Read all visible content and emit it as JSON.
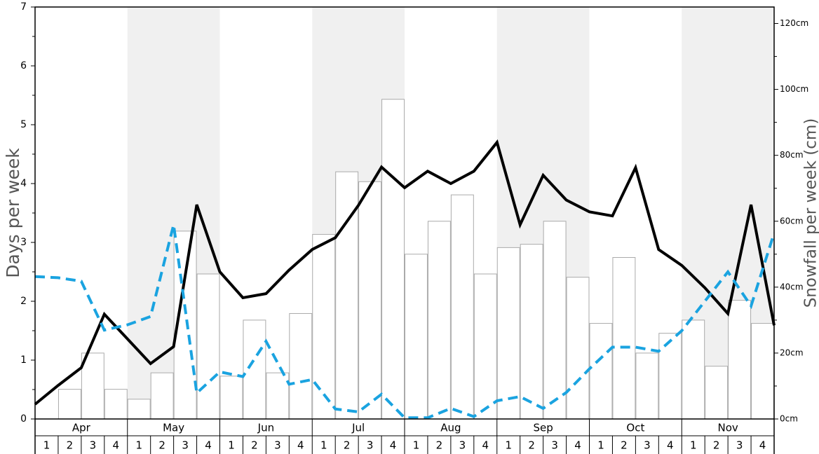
{
  "chart_data": {
    "type": "bar",
    "ylabel_left": "Days per week",
    "ylabel_right": "Snowfall per week (cm)",
    "left_axis": {
      "min": 0,
      "max": 7,
      "ticks": [
        "0",
        "1",
        "2",
        "3",
        "4",
        "5",
        "6",
        "7"
      ]
    },
    "right_axis": {
      "min": 0,
      "max": 125,
      "ticks": [
        {
          "value": 0,
          "label": "0cm"
        },
        {
          "value": 20,
          "label": "20cm"
        },
        {
          "value": 40,
          "label": "40cm"
        },
        {
          "value": 60,
          "label": "60cm"
        },
        {
          "value": 80,
          "label": "80cm"
        },
        {
          "value": 100,
          "label": "100cm"
        },
        {
          "value": 120,
          "label": "120cm"
        }
      ]
    },
    "months": [
      "Apr",
      "May",
      "Jun",
      "Jul",
      "Aug",
      "Sep",
      "Oct",
      "Nov"
    ],
    "shaded_months": [
      "May",
      "Jul",
      "Sep",
      "Nov"
    ],
    "week_labels": [
      "1",
      "2",
      "3",
      "4"
    ],
    "colors": {
      "bars_fill": "#ffffff",
      "bars_stroke": "#aaaaaa",
      "solid_line": "#000000",
      "dashed_line": "#1aa3e0",
      "shade": "#f0f0f0"
    },
    "series": [
      {
        "kind": "bars",
        "axis": "right",
        "values": [
          0,
          9,
          20,
          9,
          6,
          14,
          57,
          44,
          13,
          30,
          14,
          32,
          56,
          75,
          72,
          97,
          50,
          60,
          68,
          44,
          52,
          53,
          60,
          43,
          29,
          49,
          20,
          26,
          30,
          16,
          36,
          29
        ]
      },
      {
        "kind": "line",
        "style": "solid",
        "axis": "left",
        "values": [
          0.25,
          0.57,
          0.87,
          1.78,
          1.36,
          0.94,
          1.23,
          3.64,
          2.5,
          2.06,
          2.13,
          2.53,
          2.88,
          3.08,
          3.63,
          4.28,
          3.93,
          4.21,
          4.0,
          4.21,
          4.7,
          3.3,
          4.14,
          3.72,
          3.52,
          3.45,
          4.27,
          2.88,
          2.61,
          2.23,
          1.79,
          3.64,
          1.59
        ]
      },
      {
        "kind": "line",
        "style": "dashed",
        "axis": "left",
        "values": [
          2.42,
          2.4,
          2.34,
          1.51,
          1.6,
          1.74,
          3.3,
          0.44,
          0.8,
          0.72,
          1.32,
          0.59,
          0.67,
          0.17,
          0.12,
          0.42,
          0.02,
          0.02,
          0.18,
          0.04,
          0.31,
          0.38,
          0.18,
          0.45,
          0.85,
          1.22,
          1.22,
          1.15,
          1.5,
          2.0,
          2.5,
          1.92,
          3.16
        ]
      }
    ]
  }
}
